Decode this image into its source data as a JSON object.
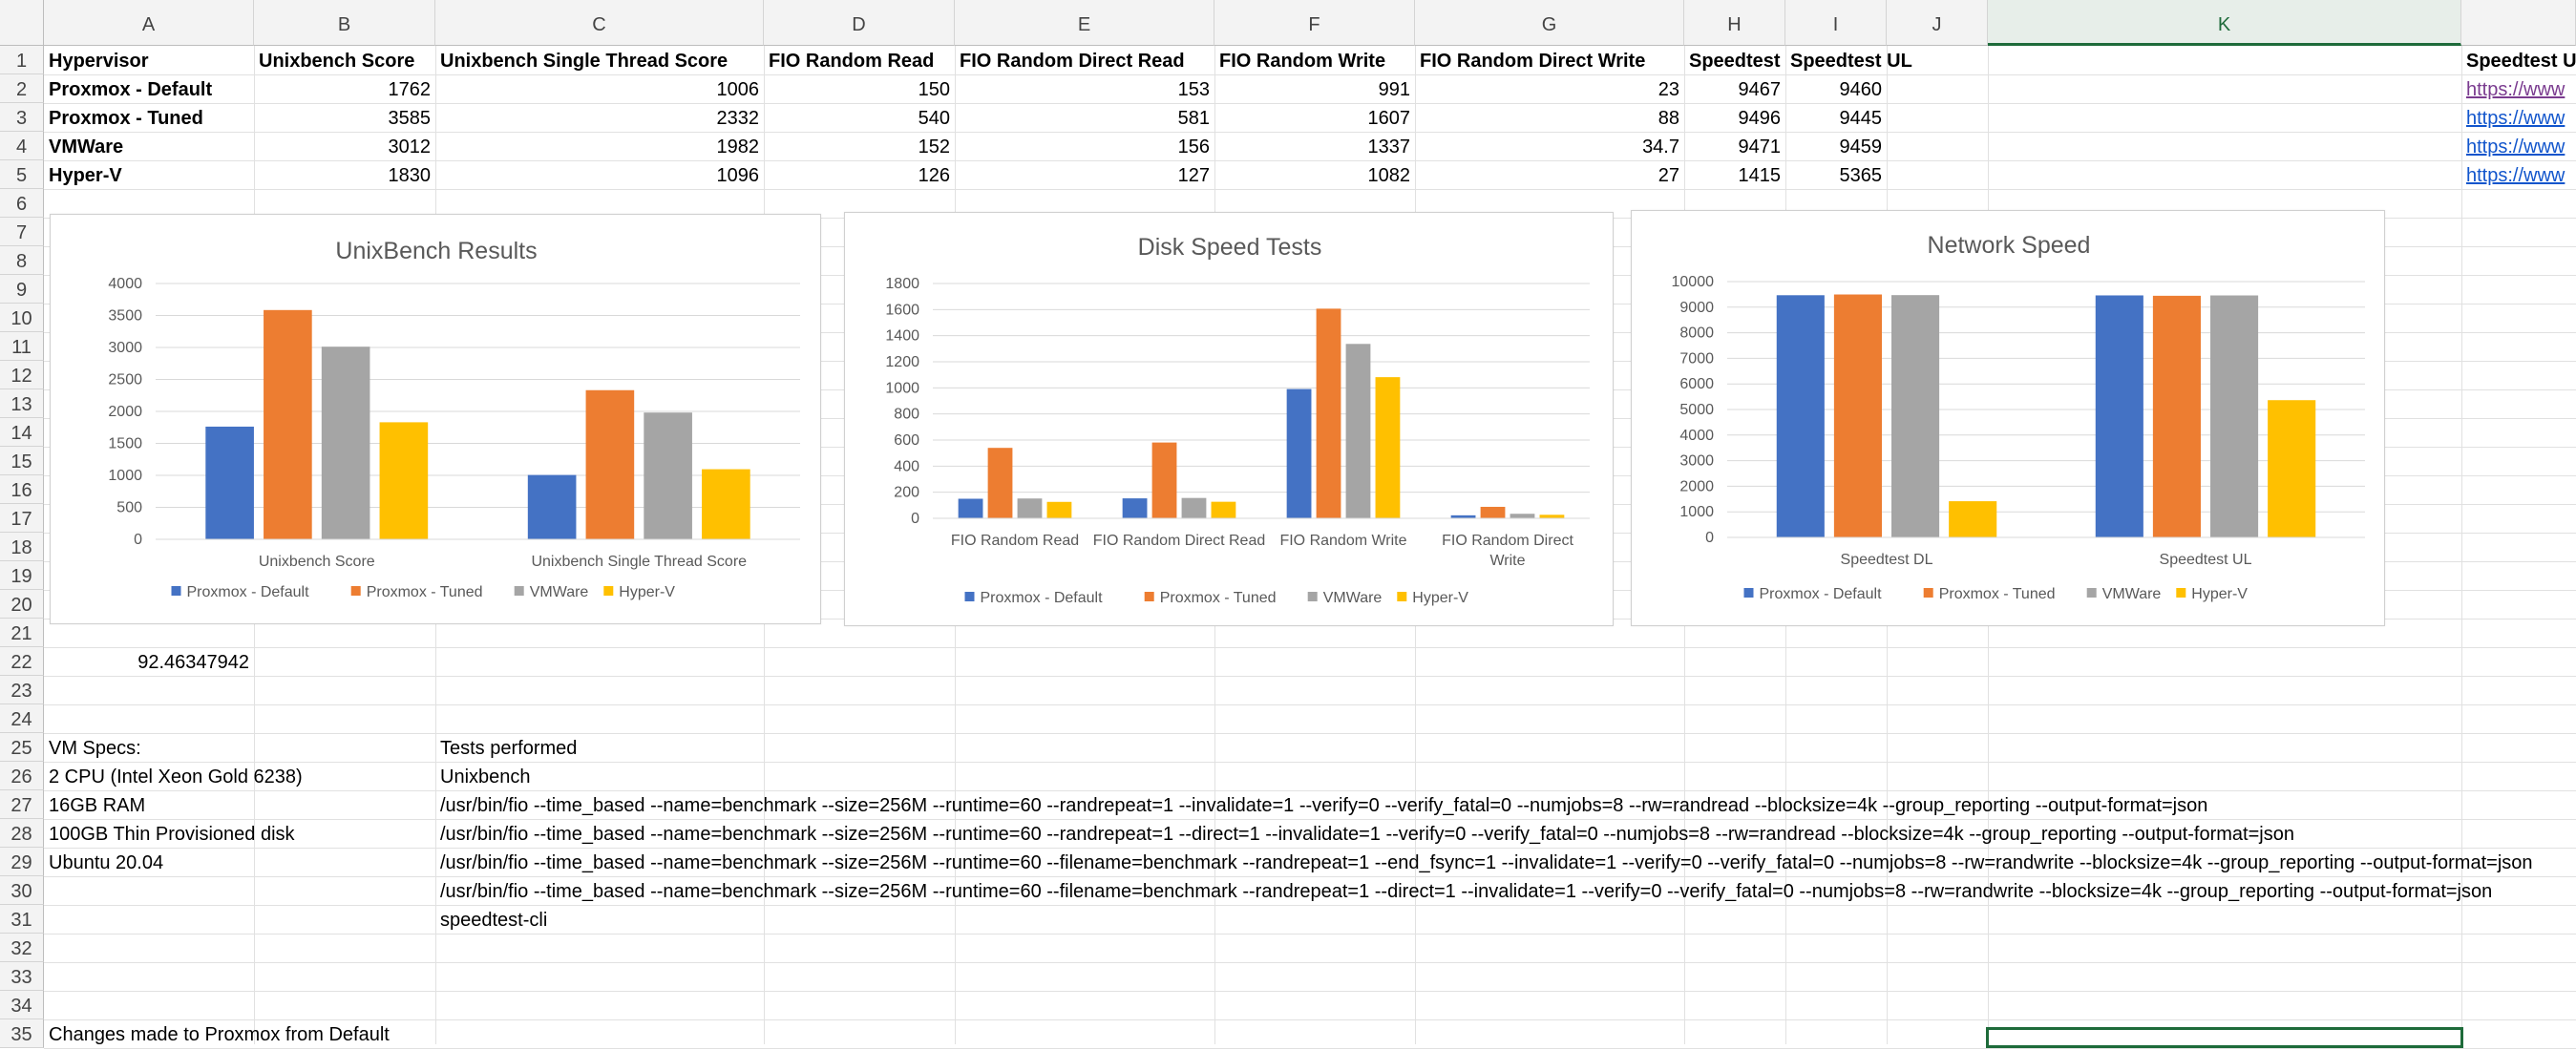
{
  "columns": [
    "A",
    "B",
    "C",
    "D",
    "E",
    "F",
    "G",
    "H",
    "I",
    "J",
    "K"
  ],
  "selected_column": "K",
  "rows": [
    "1",
    "2",
    "3",
    "4",
    "5",
    "6",
    "7",
    "8",
    "9",
    "10",
    "11",
    "12",
    "13",
    "14",
    "15",
    "16",
    "17",
    "18",
    "19",
    "20",
    "21",
    "22",
    "23",
    "24",
    "25",
    "26",
    "27",
    "28",
    "29",
    "30",
    "31",
    "32",
    "33",
    "34",
    "35"
  ],
  "table": {
    "headers": [
      "Hypervisor",
      "Unixbench Score",
      "Unixbench Single Thread Score",
      "FIO Random Read",
      "FIO Random Direct Read",
      "FIO Random Write",
      "FIO Random Direct Write",
      "Speedtest",
      "Speedtest UL"
    ],
    "header_l": "Speedtest UI",
    "rows": [
      {
        "name": "Proxmox - Default",
        "vals": [
          "1762",
          "1006",
          "150",
          "153",
          "991",
          "23",
          "9467",
          "9460"
        ],
        "link": "https://www"
      },
      {
        "name": "Proxmox - Tuned",
        "vals": [
          "3585",
          "2332",
          "540",
          "581",
          "1607",
          "88",
          "9496",
          "9445"
        ],
        "link": "https://www"
      },
      {
        "name": "VMWare",
        "vals": [
          "3012",
          "1982",
          "152",
          "156",
          "1337",
          "34.7",
          "9471",
          "9459"
        ],
        "link": "https://www"
      },
      {
        "name": "Hyper-V",
        "vals": [
          "1830",
          "1096",
          "126",
          "127",
          "1082",
          "27",
          "1415",
          "5365"
        ],
        "link": "https://www"
      }
    ]
  },
  "cell_b22": "92.46347942",
  "vm_specs": {
    "heading": "VM Specs:",
    "lines": [
      "2 CPU (Intel Xeon Gold 6238)",
      "16GB RAM",
      "100GB Thin Provisioned disk",
      "Ubuntu 20.04"
    ]
  },
  "tests": {
    "heading": "Tests performed",
    "lines": [
      "Unixbench",
      "/usr/bin/fio --time_based --name=benchmark --size=256M --runtime=60 --randrepeat=1 --invalidate=1 --verify=0 --verify_fatal=0 --numjobs=8 --rw=randread --blocksize=4k --group_reporting --output-format=json",
      "/usr/bin/fio --time_based --name=benchmark --size=256M --runtime=60 --randrepeat=1 --direct=1 --invalidate=1 --verify=0 --verify_fatal=0 --numjobs=8 --rw=randread --blocksize=4k --group_reporting --output-format=json",
      "/usr/bin/fio --time_based --name=benchmark --size=256M --runtime=60 --filename=benchmark --randrepeat=1 --end_fsync=1 --invalidate=1 --verify=0 --verify_fatal=0 --numjobs=8 --rw=randwrite --blocksize=4k --group_reporting --output-format=json",
      "/usr/bin/fio --time_based --name=benchmark --size=256M --runtime=60 --filename=benchmark --randrepeat=1 --direct=1 --invalidate=1 --verify=0 --verify_fatal=0 --numjobs=8 --rw=randwrite --blocksize=4k --group_reporting --output-format=json",
      "speedtest-cli"
    ]
  },
  "row35_text": "Changes made to Proxmox from Default",
  "colors": {
    "Proxmox - Default": "#4472c4",
    "Proxmox - Tuned": "#ed7d31",
    "VMWare": "#a5a5a5",
    "Hyper-V": "#ffc000",
    "selection": "#1e6b3a",
    "link": "#1155cc"
  },
  "chart_data": [
    {
      "type": "bar",
      "title": "UnixBench Results",
      "categories": [
        "Unixbench Score",
        "Unixbench Single Thread Score"
      ],
      "series": [
        {
          "name": "Proxmox - Default",
          "values": [
            1762,
            1006
          ]
        },
        {
          "name": "Proxmox - Tuned",
          "values": [
            3585,
            2332
          ]
        },
        {
          "name": "VMWare",
          "values": [
            3012,
            1982
          ]
        },
        {
          "name": "Hyper-V",
          "values": [
            1830,
            1096
          ]
        }
      ],
      "ylim": [
        0,
        4000
      ],
      "yticks": [
        0,
        500,
        1000,
        1500,
        2000,
        2500,
        3000,
        3500,
        4000
      ],
      "grid": true,
      "legend": "bottom"
    },
    {
      "type": "bar",
      "title": "Disk Speed Tests",
      "categories": [
        "FIO Random Read",
        "FIO Random Direct Read",
        "FIO Random Write",
        "FIO Random Direct Write"
      ],
      "series": [
        {
          "name": "Proxmox - Default",
          "values": [
            150,
            153,
            991,
            23
          ]
        },
        {
          "name": "Proxmox - Tuned",
          "values": [
            540,
            581,
            1607,
            88
          ]
        },
        {
          "name": "VMWare",
          "values": [
            152,
            156,
            1337,
            34.7
          ]
        },
        {
          "name": "Hyper-V",
          "values": [
            126,
            127,
            1082,
            27
          ]
        }
      ],
      "ylim": [
        0,
        1800
      ],
      "yticks": [
        0,
        200,
        400,
        600,
        800,
        1000,
        1200,
        1400,
        1600,
        1800
      ],
      "grid": true,
      "legend": "bottom"
    },
    {
      "type": "bar",
      "title": "Network Speed",
      "categories": [
        "Speedtest DL",
        "Speedtest UL"
      ],
      "series": [
        {
          "name": "Proxmox - Default",
          "values": [
            9467,
            9460
          ]
        },
        {
          "name": "Proxmox - Tuned",
          "values": [
            9496,
            9445
          ]
        },
        {
          "name": "VMWare",
          "values": [
            9471,
            9459
          ]
        },
        {
          "name": "Hyper-V",
          "values": [
            1415,
            5365
          ]
        }
      ],
      "ylim": [
        0,
        10000
      ],
      "yticks": [
        0,
        1000,
        2000,
        3000,
        4000,
        5000,
        6000,
        7000,
        8000,
        9000,
        10000
      ],
      "grid": true,
      "legend": "bottom"
    }
  ]
}
